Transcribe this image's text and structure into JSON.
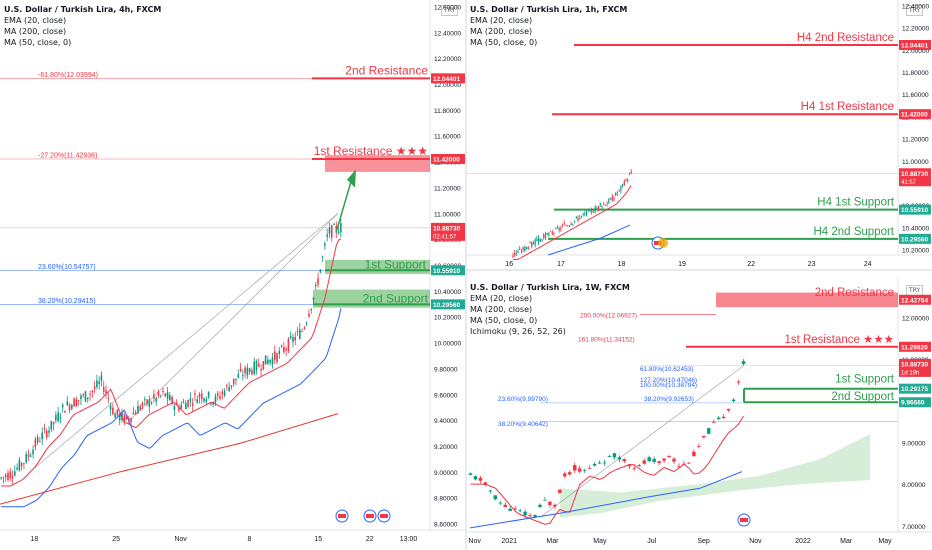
{
  "panels": [
    {
      "id": "left",
      "title": "U.S. Dollar / Turkish Lira, 4h, FXCM",
      "indicators": [
        "EMA (20, close)",
        "MA (200, close)",
        "MA (50, close, 0)"
      ],
      "currency": "TRY",
      "ylim": [
        8.55,
        12.65
      ],
      "yticks": [
        "12.60000",
        "12.40000",
        "12.20000",
        "12.00000",
        "11.80000",
        "11.60000",
        "11.40000",
        "11.20000",
        "11.00000",
        "10.80000",
        "10.60000",
        "10.40000",
        "10.20000",
        "10.00000",
        "9.80000",
        "9.60000",
        "9.40000",
        "9.20000",
        "9.00000",
        "8.80000",
        "8.60000"
      ],
      "yticks_v": [
        12.6,
        12.4,
        12.2,
        12.0,
        11.8,
        11.6,
        11.4,
        11.2,
        11.0,
        10.8,
        10.6,
        10.4,
        10.2,
        10.0,
        9.8,
        9.6,
        9.4,
        9.2,
        9.0,
        8.8,
        8.6
      ],
      "xticks": [
        "18",
        "25",
        "Nov",
        "8",
        "15",
        "22",
        "13:00"
      ],
      "xticks_t": [
        0.08,
        0.27,
        0.42,
        0.58,
        0.74,
        0.86,
        0.95
      ],
      "badges": [
        {
          "v": 12.044,
          "text": "12.04401",
          "color": "#f23645"
        },
        {
          "v": 11.42,
          "text": "11.42000",
          "color": "#f23645"
        },
        {
          "v": 10.8873,
          "text": "10.88730",
          "sub": "02:41:57",
          "color": "#f23645"
        },
        {
          "v": 10.5591,
          "text": "10.55910",
          "color": "#22ab94"
        },
        {
          "v": 10.2956,
          "text": "10.29560",
          "color": "#22ab94"
        }
      ]
    },
    {
      "id": "topright",
      "title": "U.S. Dollar / Turkish Lira, 1h, FXCM",
      "indicators": [
        "EMA (20, close)",
        "MA (200, close)",
        "MA (50, close, 0)"
      ],
      "currency": "TRY",
      "ylim": [
        10.15,
        12.45
      ],
      "yticks": [
        "12.40000",
        "12.20000",
        "12.00000",
        "11.80000",
        "11.60000",
        "11.40000",
        "11.20000",
        "11.00000",
        "10.80000",
        "10.60000",
        "10.40000",
        "10.20000"
      ],
      "yticks_v": [
        12.4,
        12.2,
        12.0,
        11.8,
        11.6,
        11.4,
        11.2,
        11.0,
        10.8,
        10.6,
        10.4,
        10.2
      ],
      "xticks": [
        "16",
        "17",
        "18",
        "19",
        "22",
        "23",
        "24"
      ],
      "xticks_t": [
        0.1,
        0.22,
        0.36,
        0.5,
        0.66,
        0.8,
        0.93
      ],
      "badges": [
        {
          "v": 12.044,
          "text": "12.04401",
          "color": "#f23645"
        },
        {
          "v": 11.42,
          "text": "11.42000",
          "color": "#f23645"
        },
        {
          "v": 10.8873,
          "text": "10.88730",
          "sub": "41:57",
          "color": "#f23645"
        },
        {
          "v": 10.5591,
          "text": "10.55910",
          "color": "#22ab94"
        },
        {
          "v": 10.2956,
          "text": "10.29560",
          "color": "#22ab94"
        }
      ]
    },
    {
      "id": "bottomright",
      "title": "U.S. Dollar / Turkish Lira, 1W, FXCM",
      "indicators": [
        "EMA (20, close)",
        "MA (200, close)",
        "MA (50, close, 0)",
        "Ichimoku (9, 26, 52, 26)"
      ],
      "currency": "TRY",
      "ylim": [
        6.85,
        12.95
      ],
      "yticks": [
        "12.00000",
        "11.00000",
        "10.00000",
        "9.00000",
        "8.00000",
        "7.00000"
      ],
      "yticks_v": [
        12,
        11,
        10,
        9,
        8,
        7
      ],
      "xticks": [
        "Nov",
        "2021",
        "Mar",
        "May",
        "Jul",
        "Sep",
        "Nov",
        "2022",
        "Mar",
        "May"
      ],
      "xticks_t": [
        0.02,
        0.1,
        0.2,
        0.31,
        0.43,
        0.55,
        0.67,
        0.78,
        0.88,
        0.97
      ],
      "badges": [
        {
          "v": 12.4276,
          "text": "12.42764",
          "color": "#f23645"
        },
        {
          "v": 11.2982,
          "text": "11.29820",
          "color": "#f23645"
        },
        {
          "v": 10.8873,
          "text": "10.88730",
          "sub": "1d 19h",
          "color": "#f23645"
        },
        {
          "v": 10.2918,
          "text": "10.29175",
          "color": "#22ab94"
        },
        {
          "v": 9.9666,
          "text": "9.96660",
          "color": "#22ab94"
        }
      ]
    }
  ],
  "chart_data": [
    {
      "type": "line",
      "title": "U.S. Dollar / Turkish Lira, 4h, FXCM",
      "ylim": [
        8.55,
        12.65
      ],
      "series": [
        {
          "name": "EMA (20, close)"
        },
        {
          "name": "MA (200, close)"
        },
        {
          "name": "MA (50, close, 0)"
        }
      ],
      "price_path": [
        8.95,
        9.0,
        9.1,
        9.25,
        9.35,
        9.5,
        9.55,
        9.6,
        9.7,
        9.45,
        9.4,
        9.5,
        9.55,
        9.6,
        9.5,
        9.55,
        9.6,
        9.55,
        9.65,
        9.75,
        9.8,
        9.85,
        9.9,
        10.0,
        10.1,
        10.4,
        10.85,
        10.89
      ],
      "levels": [
        {
          "label": "2nd Resistance",
          "value": 12.04401,
          "fib": "-61.80%(12.03994)"
        },
        {
          "label": "1st Resistance ★★★",
          "value": 11.42,
          "fib": "-27.20%(11.42936)"
        },
        {
          "label": "1st Support",
          "value": 10.5591,
          "fib": "23.60%(10.54757)"
        },
        {
          "label": "2nd Support",
          "value": 10.2956,
          "fib": "38.20%(10.29415)"
        }
      ],
      "last_price": 10.8873,
      "countdown": "02:41:57"
    },
    {
      "type": "line",
      "title": "U.S. Dollar / Turkish Lira, 1h, FXCM",
      "ylim": [
        10.15,
        12.45
      ],
      "price_path": [
        10.15,
        10.2,
        10.25,
        10.3,
        10.35,
        10.4,
        10.45,
        10.5,
        10.55,
        10.6,
        10.65,
        10.75,
        10.89
      ],
      "levels": [
        {
          "label": "H4 2nd Resistance",
          "value": 12.04401
        },
        {
          "label": "H4 1st Resistance",
          "value": 11.42
        },
        {
          "label": "H4 1st Support",
          "value": 10.5591
        },
        {
          "label": "H4 2nd Support",
          "value": 10.2956
        }
      ],
      "last_price": 10.8873,
      "countdown": "41:57"
    },
    {
      "type": "line",
      "title": "U.S. Dollar / Turkish Lira, 1W, FXCM",
      "ylim": [
        6.85,
        12.95
      ],
      "price_path": [
        8.2,
        8.1,
        7.8,
        7.5,
        7.4,
        7.3,
        7.2,
        7.6,
        7.5,
        8.2,
        8.4,
        8.3,
        8.5,
        8.6,
        8.7,
        8.5,
        8.4,
        8.6,
        8.5,
        8.7,
        8.4,
        8.6,
        9.0,
        9.4,
        9.6,
        10.0,
        10.89
      ],
      "levels": [
        {
          "label": "2nd Resistance",
          "value": 12.42764,
          "fib": "200.00%(12.06927)"
        },
        {
          "label": "1st Resistance ★★★",
          "value": 11.2982,
          "fib": "161.80%(11.34152)"
        },
        {
          "label": "1st Support",
          "value": 10.29175,
          "fib": "61.80%(10.62453)"
        },
        {
          "label": "2nd Support",
          "value": 9.9666,
          "fib": "38.20%(9.92653)"
        }
      ],
      "fib_extra": [
        "23.60%(9.99790)",
        "38.20%(9.40642)",
        "100.00%(10.38794)",
        "127.20%(10.47046)"
      ],
      "last_price": 10.8873,
      "countdown": "1d 19h"
    }
  ],
  "colors": {
    "res": "#f23645",
    "sup": "#22ab94",
    "ema": "#f23645",
    "ma50": "#2962ff",
    "ma200": "#e2372f",
    "bull": "#089981",
    "bear": "#f23645"
  }
}
